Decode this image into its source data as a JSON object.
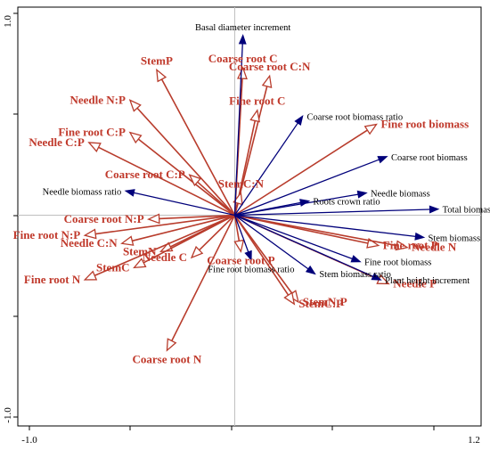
{
  "chart_data": {
    "type": "scatter",
    "subtype": "rda-biplot",
    "xlim": [
      -1.0,
      1.2
    ],
    "ylim": [
      -1.0,
      1.0
    ],
    "x_ticks": [
      "-1.0",
      "1.2"
    ],
    "y_ticks": [
      "1.0",
      "-1.0"
    ],
    "colors": {
      "response": "#00007a",
      "explanatory": "#b83c2c",
      "explanatory_text": "#c0392b"
    },
    "series": [
      {
        "role": "response",
        "vectors": [
          {
            "label": "Basal diameter increment",
            "x": 0.04,
            "y": 0.89
          },
          {
            "label": "Coarse root biomass ratio",
            "x": 0.33,
            "y": 0.49
          },
          {
            "label": "Coarse root biomass",
            "x": 0.74,
            "y": 0.29
          },
          {
            "label": "Needle biomass ratio",
            "x": -0.53,
            "y": 0.12
          },
          {
            "label": "Roots crown ratio",
            "x": 0.36,
            "y": 0.07
          },
          {
            "label": "Needle biomass",
            "x": 0.64,
            "y": 0.11
          },
          {
            "label": "Total biomass",
            "x": 0.99,
            "y": 0.03
          },
          {
            "label": "Stem biomass",
            "x": 0.92,
            "y": -0.11
          },
          {
            "label": "Fine root biomass",
            "x": 0.61,
            "y": -0.23
          },
          {
            "label": "Plant height increment",
            "x": 0.71,
            "y": -0.32
          },
          {
            "label": "Fine root biomass ratio",
            "x": 0.08,
            "y": -0.22
          },
          {
            "label": "Stem biomass ratio",
            "x": 0.39,
            "y": -0.29
          }
        ]
      },
      {
        "role": "explanatory",
        "vectors": [
          {
            "label": "Coarse root C",
            "x": 0.04,
            "y": 0.73
          },
          {
            "label": "Coarse root C:N",
            "x": 0.17,
            "y": 0.69
          },
          {
            "label": "StemP",
            "x": -0.38,
            "y": 0.72
          },
          {
            "label": "Needle N:P",
            "x": -0.51,
            "y": 0.57
          },
          {
            "label": "Fine root C",
            "x": 0.11,
            "y": 0.52
          },
          {
            "label": "Fine root biomass",
            "x": 0.69,
            "y": 0.45
          },
          {
            "label": "Fine root C:P",
            "x": -0.51,
            "y": 0.41
          },
          {
            "label": "Needle C:P",
            "x": -0.71,
            "y": 0.36
          },
          {
            "label": "Coarse root C:P",
            "x": -0.22,
            "y": 0.2
          },
          {
            "label": "StemC:N",
            "x": 0.03,
            "y": 0.11
          },
          {
            "label": "Coarse root N:P",
            "x": -0.42,
            "y": -0.02
          },
          {
            "label": "Fine root N:P",
            "x": -0.73,
            "y": -0.1
          },
          {
            "label": "Needle C:N",
            "x": -0.55,
            "y": -0.14
          },
          {
            "label": "StemN",
            "x": -0.36,
            "y": -0.18
          },
          {
            "label": "StemC",
            "x": -0.49,
            "y": -0.26
          },
          {
            "label": "Fine root N",
            "x": -0.73,
            "y": -0.32
          },
          {
            "label": "Needle C",
            "x": -0.21,
            "y": -0.21
          },
          {
            "label": "Coarse root P",
            "x": 0.03,
            "y": -0.18
          },
          {
            "label": "Fine root P",
            "x": 0.7,
            "y": -0.15
          },
          {
            "label": "Needle N",
            "x": 0.84,
            "y": -0.16
          },
          {
            "label": "Needle P",
            "x": 0.75,
            "y": -0.34
          },
          {
            "label": "StemN:P",
            "x": 0.31,
            "y": -0.43
          },
          {
            "label": "StemC:P",
            "x": 0.29,
            "y": -0.44
          },
          {
            "label": "Coarse root N",
            "x": -0.33,
            "y": -0.67
          }
        ]
      }
    ]
  }
}
